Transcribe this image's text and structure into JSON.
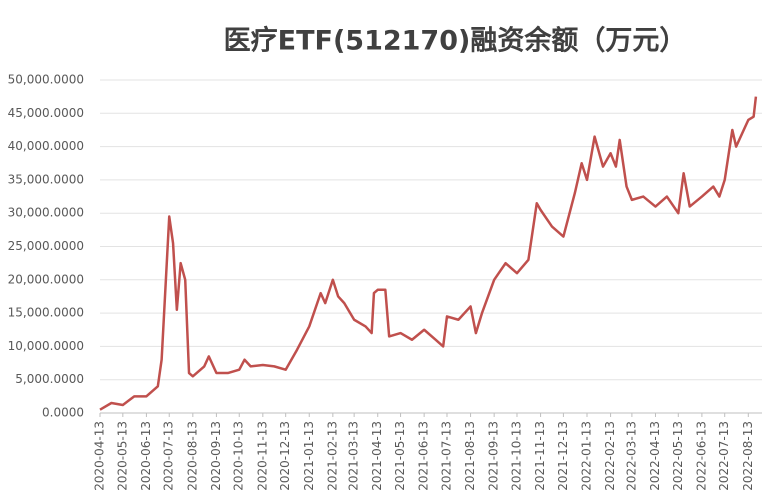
{
  "chart_data": {
    "type": "line",
    "title": "医疗ETF(512170)融资余额（万元）",
    "x": [
      "2020-04-13",
      "2020-04-28",
      "2020-05-13",
      "2020-05-28",
      "2020-06-13",
      "2020-06-28",
      "2020-07-03",
      "2020-07-13",
      "2020-07-18",
      "2020-07-23",
      "2020-07-28",
      "2020-08-03",
      "2020-08-08",
      "2020-08-13",
      "2020-08-28",
      "2020-09-03",
      "2020-09-13",
      "2020-09-28",
      "2020-10-13",
      "2020-10-20",
      "2020-10-28",
      "2020-11-13",
      "2020-11-28",
      "2020-12-13",
      "2020-12-28",
      "2021-01-13",
      "2021-01-28",
      "2021-02-03",
      "2021-02-13",
      "2021-02-20",
      "2021-02-28",
      "2021-03-13",
      "2021-03-28",
      "2021-04-05",
      "2021-04-08",
      "2021-04-13",
      "2021-04-23",
      "2021-04-28",
      "2021-05-13",
      "2021-05-28",
      "2021-06-13",
      "2021-06-28",
      "2021-07-08",
      "2021-07-13",
      "2021-07-28",
      "2021-08-13",
      "2021-08-20",
      "2021-08-28",
      "2021-09-13",
      "2021-09-28",
      "2021-10-13",
      "2021-10-28",
      "2021-11-08",
      "2021-11-13",
      "2021-11-28",
      "2021-12-13",
      "2021-12-28",
      "2022-01-06",
      "2022-01-13",
      "2022-01-23",
      "2022-02-03",
      "2022-02-13",
      "2022-02-20",
      "2022-02-25",
      "2022-03-06",
      "2022-03-13",
      "2022-03-28",
      "2022-04-13",
      "2022-04-28",
      "2022-05-13",
      "2022-05-20",
      "2022-05-28",
      "2022-06-13",
      "2022-06-28",
      "2022-07-06",
      "2022-07-13",
      "2022-07-23",
      "2022-07-28",
      "2022-08-13",
      "2022-08-20",
      "2022-08-23"
    ],
    "series": [
      {
        "name": "融资余额",
        "color": "#c0504d",
        "values": [
          500,
          1500,
          1200,
          2500,
          2500,
          4000,
          8000,
          29500,
          25500,
          15500,
          22500,
          20000,
          6000,
          5500,
          7000,
          8500,
          6000,
          6000,
          6500,
          8000,
          7000,
          7200,
          7000,
          6500,
          9500,
          13000,
          18000,
          16500,
          20000,
          17500,
          16500,
          14000,
          13000,
          12000,
          18000,
          18500,
          18500,
          11500,
          12000,
          11000,
          12500,
          11000,
          10000,
          14500,
          14000,
          16000,
          12000,
          15000,
          20000,
          22500,
          21000,
          23000,
          31500,
          30500,
          28000,
          26500,
          33000,
          37500,
          35000,
          41500,
          37000,
          39000,
          37000,
          41000,
          34000,
          32000,
          32500,
          31000,
          32500,
          30000,
          36000,
          31000,
          32500,
          34000,
          32500,
          35000,
          42500,
          40000,
          44000,
          44500,
          47500
        ]
      }
    ],
    "xlim": [
      "2020-04-13",
      "2022-08-31"
    ],
    "xticks": [
      "2020-04-13",
      "2020-05-13",
      "2020-06-13",
      "2020-07-13",
      "2020-08-13",
      "2020-09-13",
      "2020-10-13",
      "2020-11-13",
      "2020-12-13",
      "2021-01-13",
      "2021-02-13",
      "2021-03-13",
      "2021-04-13",
      "2021-05-13",
      "2021-06-13",
      "2021-07-13",
      "2021-08-13",
      "2021-09-13",
      "2021-10-13",
      "2021-11-13",
      "2021-12-13",
      "2022-01-13",
      "2022-02-13",
      "2022-03-13",
      "2022-04-13",
      "2022-05-13",
      "2022-06-13",
      "2022-07-13",
      "2022-08-13"
    ],
    "ylim": [
      0,
      50000
    ],
    "yticks": [
      {
        "value": 0,
        "label": "0.0000"
      },
      {
        "value": 5000,
        "label": "5,000.0000"
      },
      {
        "value": 10000,
        "label": "10,000.0000"
      },
      {
        "value": 15000,
        "label": "15,000.0000"
      },
      {
        "value": 20000,
        "label": "20,000.0000"
      },
      {
        "value": 25000,
        "label": "25,000.0000"
      },
      {
        "value": 30000,
        "label": "30,000.0000"
      },
      {
        "value": 35000,
        "label": "35,000.0000"
      },
      {
        "value": 40000,
        "label": "40,000.0000"
      },
      {
        "value": 45000,
        "label": "45,000.0000"
      },
      {
        "value": 50000,
        "label": "50,000.0000"
      }
    ],
    "grid": true
  }
}
